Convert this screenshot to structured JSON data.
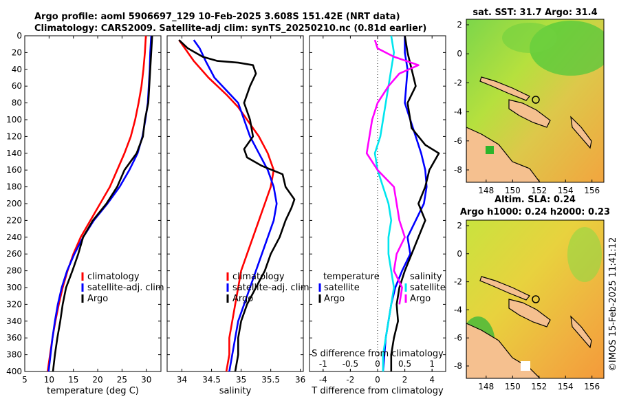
{
  "title_line1": "Argo profile: aoml 5906697_129 10-Feb-2025 3.608S 151.42E (NRT data)",
  "title_line2": "Climatology: CARS2009. Satellite-adj clim: synTS_20250210.nc (0.81d earlier)",
  "credit": "©IMOS 15-Feb-2025 11:41:12",
  "colors": {
    "climatology": "#ff0000",
    "satellite": "#0000ff",
    "argo": "#000000",
    "sat_diff": "#00e5ee",
    "argo_s": "#ff00ff"
  },
  "chart_data": [
    {
      "type": "line",
      "id": "temperature",
      "xlabel": "temperature (deg C)",
      "xlim": [
        5,
        33
      ],
      "ylim": [
        0,
        400
      ],
      "xticks": [
        5,
        10,
        15,
        20,
        25,
        30
      ],
      "yticks": [
        0,
        20,
        40,
        60,
        80,
        100,
        120,
        140,
        160,
        180,
        200,
        220,
        240,
        260,
        280,
        300,
        320,
        340,
        360,
        380,
        400
      ],
      "legend": [
        "climatology",
        "satellite-adj. clim",
        "Argo"
      ],
      "series": [
        {
          "name": "climatology",
          "color": "#ff0000",
          "points": [
            [
              29.9,
              0
            ],
            [
              29.7,
              20
            ],
            [
              29.4,
              40
            ],
            [
              29.0,
              60
            ],
            [
              28.4,
              80
            ],
            [
              27.7,
              100
            ],
            [
              26.8,
              120
            ],
            [
              25.5,
              140
            ],
            [
              24.0,
              160
            ],
            [
              22.5,
              180
            ],
            [
              20.5,
              200
            ],
            [
              18.5,
              220
            ],
            [
              16.5,
              240
            ],
            [
              15.0,
              260
            ],
            [
              13.8,
              280
            ],
            [
              12.8,
              300
            ],
            [
              12.0,
              320
            ],
            [
              11.3,
              340
            ],
            [
              10.7,
              360
            ],
            [
              10.2,
              380
            ],
            [
              9.7,
              400
            ]
          ]
        },
        {
          "name": "satellite-adj. clim",
          "color": "#0000ff",
          "points": [
            [
              31.0,
              0
            ],
            [
              30.8,
              20
            ],
            [
              30.7,
              40
            ],
            [
              30.5,
              60
            ],
            [
              30.3,
              80
            ],
            [
              29.8,
              100
            ],
            [
              29.2,
              120
            ],
            [
              28.2,
              140
            ],
            [
              26.5,
              160
            ],
            [
              24.5,
              180
            ],
            [
              22.0,
              200
            ],
            [
              19.2,
              220
            ],
            [
              17.0,
              240
            ],
            [
              15.2,
              260
            ],
            [
              13.7,
              280
            ],
            [
              12.6,
              300
            ],
            [
              11.8,
              320
            ],
            [
              11.2,
              340
            ],
            [
              10.7,
              360
            ],
            [
              10.3,
              380
            ],
            [
              9.9,
              400
            ]
          ]
        },
        {
          "name": "Argo",
          "color": "#000000",
          "points": [
            [
              31.2,
              0
            ],
            [
              31.0,
              20
            ],
            [
              30.8,
              40
            ],
            [
              30.6,
              60
            ],
            [
              30.4,
              80
            ],
            [
              29.7,
              100
            ],
            [
              29.3,
              120
            ],
            [
              28.0,
              140
            ],
            [
              25.5,
              160
            ],
            [
              24.0,
              180
            ],
            [
              21.8,
              200
            ],
            [
              19.0,
              220
            ],
            [
              17.0,
              240
            ],
            [
              16.0,
              260
            ],
            [
              14.8,
              280
            ],
            [
              13.5,
              300
            ],
            [
              12.8,
              320
            ],
            [
              12.3,
              340
            ],
            [
              11.7,
              360
            ],
            [
              11.2,
              380
            ],
            [
              10.8,
              400
            ]
          ]
        }
      ]
    },
    {
      "type": "line",
      "id": "salinity",
      "xlabel": "salinity",
      "xlim": [
        33.75,
        36.05
      ],
      "ylim": [
        0,
        400
      ],
      "xticks": [
        34,
        34.5,
        35,
        35.5,
        36
      ],
      "tick_labels": [
        "34",
        "34.5",
        "35",
        "35.5",
        "36"
      ],
      "legend": [
        "climatology",
        "satellite-adj. clim",
        "Argo"
      ],
      "series": [
        {
          "name": "climatology",
          "color": "#ff0000",
          "points": [
            [
              33.95,
              5
            ],
            [
              34.05,
              15
            ],
            [
              34.2,
              30
            ],
            [
              34.45,
              50
            ],
            [
              34.75,
              70
            ],
            [
              34.95,
              85
            ],
            [
              35.1,
              100
            ],
            [
              35.3,
              120
            ],
            [
              35.45,
              140
            ],
            [
              35.55,
              160
            ],
            [
              35.5,
              180
            ],
            [
              35.4,
              200
            ],
            [
              35.3,
              220
            ],
            [
              35.2,
              240
            ],
            [
              35.1,
              260
            ],
            [
              35.0,
              280
            ],
            [
              34.95,
              300
            ],
            [
              34.9,
              320
            ],
            [
              34.85,
              340
            ],
            [
              34.8,
              360
            ],
            [
              34.8,
              380
            ],
            [
              34.75,
              400
            ]
          ]
        },
        {
          "name": "satellite-adj. clim",
          "color": "#0000ff",
          "points": [
            [
              34.2,
              5
            ],
            [
              34.3,
              15
            ],
            [
              34.4,
              30
            ],
            [
              34.55,
              50
            ],
            [
              34.75,
              65
            ],
            [
              34.95,
              80
            ],
            [
              35.05,
              100
            ],
            [
              35.15,
              120
            ],
            [
              35.3,
              140
            ],
            [
              35.45,
              160
            ],
            [
              35.55,
              180
            ],
            [
              35.6,
              200
            ],
            [
              35.55,
              220
            ],
            [
              35.45,
              240
            ],
            [
              35.35,
              260
            ],
            [
              35.25,
              280
            ],
            [
              35.15,
              300
            ],
            [
              35.05,
              320
            ],
            [
              34.95,
              340
            ],
            [
              34.9,
              360
            ],
            [
              34.85,
              380
            ],
            [
              34.8,
              400
            ]
          ]
        },
        {
          "name": "Argo",
          "color": "#000000",
          "points": [
            [
              33.95,
              5
            ],
            [
              34.1,
              15
            ],
            [
              34.35,
              25
            ],
            [
              34.6,
              30
            ],
            [
              34.95,
              32
            ],
            [
              35.2,
              35
            ],
            [
              35.25,
              45
            ],
            [
              35.15,
              60
            ],
            [
              35.05,
              80
            ],
            [
              35.15,
              100
            ],
            [
              35.2,
              120
            ],
            [
              35.05,
              135
            ],
            [
              35.1,
              145
            ],
            [
              35.35,
              155
            ],
            [
              35.7,
              165
            ],
            [
              35.75,
              180
            ],
            [
              35.9,
              195
            ],
            [
              35.85,
              205
            ],
            [
              35.75,
              220
            ],
            [
              35.65,
              240
            ],
            [
              35.5,
              260
            ],
            [
              35.4,
              280
            ],
            [
              35.25,
              300
            ],
            [
              35.1,
              320
            ],
            [
              35.0,
              340
            ],
            [
              34.95,
              360
            ],
            [
              34.95,
              380
            ],
            [
              34.9,
              400
            ]
          ]
        }
      ]
    },
    {
      "type": "line",
      "id": "difference",
      "xlabel": "T difference from climatology",
      "top_xlabel": "S difference from climatology",
      "xlim": [
        -5,
        5
      ],
      "ylim": [
        0,
        400
      ],
      "xticks": [
        -4,
        -2,
        0,
        2,
        4
      ],
      "tick_labels": [
        "-4",
        "-2",
        "0",
        "2",
        "4"
      ],
      "top_xticks": [
        -1,
        -0.5,
        0,
        0.5,
        1
      ],
      "top_tick_labels": [
        "-1",
        "-0.5",
        "0",
        "0.5",
        "1"
      ],
      "legend_left_title": "temperature",
      "legend_left": [
        "satellite",
        "Argo"
      ],
      "legend_right_title": "salinity",
      "legend_right": [
        "satellite",
        "Argo"
      ],
      "series": [
        {
          "name": "T satellite",
          "color": "#0000ff",
          "points": [
            [
              2.0,
              0
            ],
            [
              2.0,
              20
            ],
            [
              2.2,
              40
            ],
            [
              2.1,
              60
            ],
            [
              2.0,
              80
            ],
            [
              2.4,
              100
            ],
            [
              2.8,
              120
            ],
            [
              3.2,
              140
            ],
            [
              3.5,
              160
            ],
            [
              3.6,
              180
            ],
            [
              3.4,
              200
            ],
            [
              2.8,
              220
            ],
            [
              2.2,
              240
            ],
            [
              2.4,
              260
            ],
            [
              1.8,
              280
            ],
            [
              1.3,
              300
            ],
            [
              1.0,
              320
            ],
            [
              0.8,
              340
            ],
            [
              0.6,
              360
            ],
            [
              0.5,
              380
            ],
            [
              0.4,
              400
            ]
          ]
        },
        {
          "name": "T Argo",
          "color": "#000000",
          "points": [
            [
              2.0,
              0
            ],
            [
              2.2,
              20
            ],
            [
              2.5,
              40
            ],
            [
              2.8,
              60
            ],
            [
              2.2,
              80
            ],
            [
              2.5,
              110
            ],
            [
              3.5,
              130
            ],
            [
              4.5,
              140
            ],
            [
              3.8,
              160
            ],
            [
              3.5,
              180
            ],
            [
              3.0,
              200
            ],
            [
              3.5,
              220
            ],
            [
              3.0,
              240
            ],
            [
              2.5,
              260
            ],
            [
              2.0,
              280
            ],
            [
              1.6,
              300
            ],
            [
              1.4,
              320
            ],
            [
              1.5,
              340
            ],
            [
              1.2,
              360
            ],
            [
              1.0,
              380
            ],
            [
              1.0,
              400
            ]
          ]
        },
        {
          "name": "S satellite",
          "color": "#00e5ee",
          "points": [
            [
              0.25,
              0
            ],
            [
              0.3,
              20
            ],
            [
              0.25,
              40
            ],
            [
              0.2,
              60
            ],
            [
              0.15,
              80
            ],
            [
              0.1,
              100
            ],
            [
              0.05,
              120
            ],
            [
              -0.05,
              140
            ],
            [
              0.0,
              160
            ],
            [
              0.1,
              180
            ],
            [
              0.2,
              200
            ],
            [
              0.25,
              220
            ],
            [
              0.2,
              240
            ],
            [
              0.2,
              260
            ],
            [
              0.25,
              280
            ],
            [
              0.3,
              300
            ],
            [
              0.25,
              320
            ],
            [
              0.2,
              340
            ],
            [
              0.15,
              360
            ],
            [
              0.1,
              380
            ],
            [
              0.1,
              400
            ]
          ]
        },
        {
          "name": "S Argo",
          "color": "#ff00ff",
          "points": [
            [
              -0.05,
              5
            ],
            [
              0.0,
              15
            ],
            [
              0.3,
              25
            ],
            [
              0.75,
              35
            ],
            [
              0.4,
              45
            ],
            [
              0.2,
              60
            ],
            [
              0.0,
              80
            ],
            [
              -0.1,
              100
            ],
            [
              -0.15,
              120
            ],
            [
              -0.2,
              140
            ],
            [
              0.0,
              160
            ],
            [
              0.3,
              180
            ],
            [
              0.35,
              200
            ],
            [
              0.4,
              220
            ],
            [
              0.5,
              240
            ],
            [
              0.35,
              260
            ],
            [
              0.3,
              280
            ],
            [
              0.45,
              300
            ],
            [
              0.4,
              320
            ]
          ]
        }
      ]
    }
  ],
  "maps": [
    {
      "title": "sat. SST: 31.7 Argo: 31.4",
      "xticks": [
        "148",
        "150",
        "152",
        "154",
        "156"
      ],
      "yticks": [
        "2",
        "0",
        "-2",
        "-4",
        "-6",
        "-8"
      ]
    },
    {
      "title_line1": "Altim. SLA: 0.24",
      "title_line2": "Argo h1000: 0.24 h2000: 0.23",
      "xticks": [
        "148",
        "150",
        "152",
        "154",
        "156"
      ],
      "yticks": [
        "2",
        "0",
        "-2",
        "-4",
        "-6",
        "-8"
      ]
    }
  ]
}
